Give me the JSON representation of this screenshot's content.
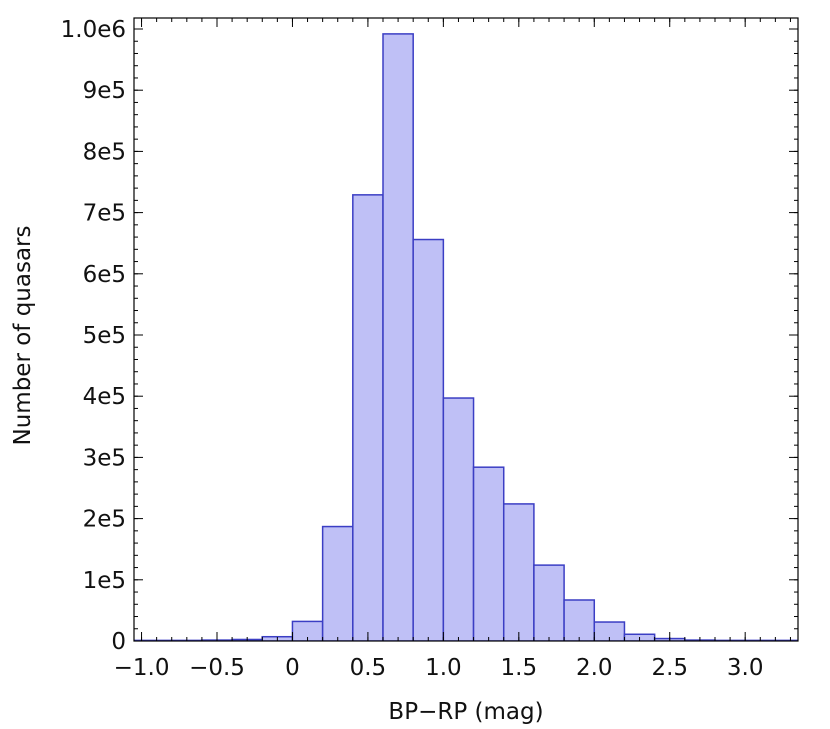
{
  "chart_data": {
    "type": "bar",
    "title": "",
    "xlabel": "BP−RP (mag)",
    "ylabel": "Number of quasars",
    "xlim": [
      -1.05,
      3.35
    ],
    "ylim": [
      0,
      1000000
    ],
    "bin_width": 0.2,
    "bins": [
      {
        "x0": -1.2,
        "value": 1000
      },
      {
        "x0": -1.0,
        "value": 1000
      },
      {
        "x0": -0.8,
        "value": 1000
      },
      {
        "x0": -0.6,
        "value": 1500
      },
      {
        "x0": -0.4,
        "value": 2500
      },
      {
        "x0": -0.2,
        "value": 7000
      },
      {
        "x0": 0.0,
        "value": 32000
      },
      {
        "x0": 0.2,
        "value": 187000
      },
      {
        "x0": 0.4,
        "value": 729000
      },
      {
        "x0": 0.6,
        "value": 992000
      },
      {
        "x0": 0.8,
        "value": 656000
      },
      {
        "x0": 1.0,
        "value": 397000
      },
      {
        "x0": 1.2,
        "value": 284000
      },
      {
        "x0": 1.4,
        "value": 224000
      },
      {
        "x0": 1.6,
        "value": 124000
      },
      {
        "x0": 1.8,
        "value": 67000
      },
      {
        "x0": 2.0,
        "value": 31000
      },
      {
        "x0": 2.2,
        "value": 11000
      },
      {
        "x0": 2.4,
        "value": 4000
      },
      {
        "x0": 2.6,
        "value": 1500
      },
      {
        "x0": 2.8,
        "value": 1000
      },
      {
        "x0": 3.0,
        "value": 1000
      },
      {
        "x0": 3.2,
        "value": 1000
      }
    ],
    "xticks": [
      {
        "value": -1.0,
        "label": "−1.0"
      },
      {
        "value": -0.5,
        "label": "−0.5"
      },
      {
        "value": 0.0,
        "label": "0"
      },
      {
        "value": 0.5,
        "label": "0.5"
      },
      {
        "value": 1.0,
        "label": "1.0"
      },
      {
        "value": 1.5,
        "label": "1.5"
      },
      {
        "value": 2.0,
        "label": "2.0"
      },
      {
        "value": 2.5,
        "label": "2.5"
      },
      {
        "value": 3.0,
        "label": "3.0"
      }
    ],
    "yticks": [
      {
        "value": 0,
        "label": "0"
      },
      {
        "value": 100000,
        "label": "1e5"
      },
      {
        "value": 200000,
        "label": "2e5"
      },
      {
        "value": 300000,
        "label": "3e5"
      },
      {
        "value": 400000,
        "label": "4e5"
      },
      {
        "value": 500000,
        "label": "5e5"
      },
      {
        "value": 600000,
        "label": "6e5"
      },
      {
        "value": 700000,
        "label": "7e5"
      },
      {
        "value": 800000,
        "label": "8e5"
      },
      {
        "value": 900000,
        "label": "9e5"
      },
      {
        "value": 1000000,
        "label": "1.0e6"
      }
    ],
    "x_minor_step": 0.1,
    "y_minor_step": 20000,
    "grid": false,
    "legend": "none",
    "colors": {
      "bar_fill": "#bfc0f6",
      "bar_stroke": "#3b3ec4",
      "axis": "#000000"
    }
  }
}
